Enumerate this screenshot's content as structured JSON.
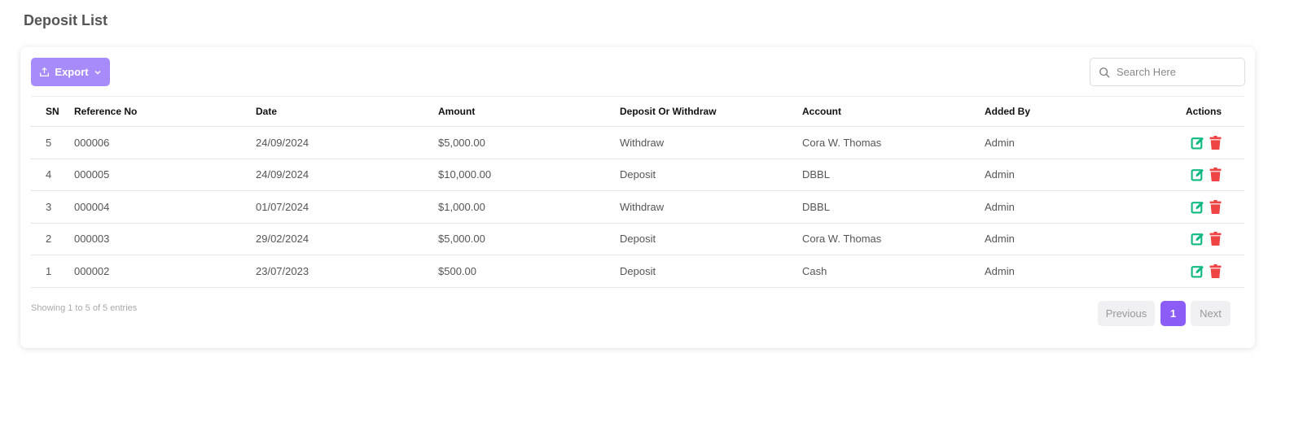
{
  "page": {
    "title": "Deposit List"
  },
  "toolbar": {
    "export_label": "Export",
    "search_placeholder": "Search Here"
  },
  "table": {
    "headers": [
      "SN",
      "Reference No",
      "Date",
      "Amount",
      "Deposit Or Withdraw",
      "Account",
      "Added By",
      "Actions"
    ],
    "rows": [
      [
        "5",
        "000006",
        "24/09/2024",
        "$5,000.00",
        "Withdraw",
        "Cora W. Thomas",
        "Admin"
      ],
      [
        "4",
        "000005",
        "24/09/2024",
        "$10,000.00",
        "Deposit",
        "DBBL",
        "Admin"
      ],
      [
        "3",
        "000004",
        "01/07/2024",
        "$1,000.00",
        "Withdraw",
        "DBBL",
        "Admin"
      ],
      [
        "2",
        "000003",
        "29/02/2024",
        "$5,000.00",
        "Deposit",
        "Cora W. Thomas",
        "Admin"
      ],
      [
        "1",
        "000002",
        "23/07/2023",
        "$500.00",
        "Deposit",
        "Cash",
        "Admin"
      ]
    ]
  },
  "footer": {
    "info": "Showing 1 to 5 of 5 entries",
    "previous": "Previous",
    "page": "1",
    "next": "Next"
  },
  "colors": {
    "accent": "#8b5cf6",
    "export": "#a78bfa",
    "edit": "#10b981",
    "delete": "#ef4444"
  }
}
